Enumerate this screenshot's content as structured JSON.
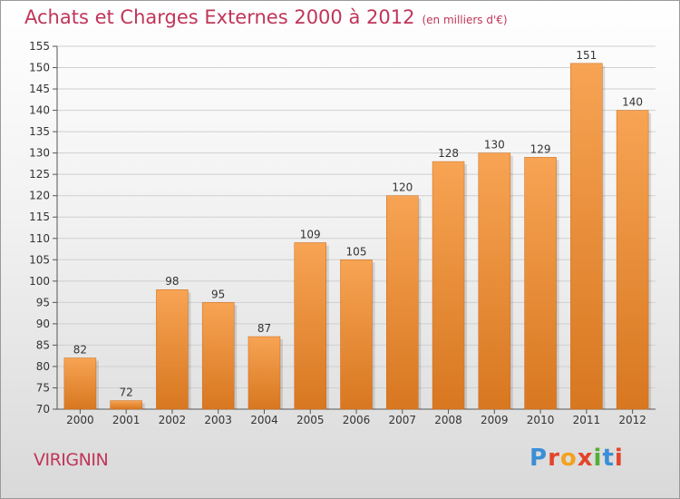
{
  "title": "Achats et Charges Externes 2000 à 2012",
  "unit": "(en milliers d'€)",
  "commune": "VIRIGNIN",
  "logo": "Proxiti",
  "colors": {
    "title": "#c0355a",
    "bar_top": "#f7a454",
    "bar_bottom": "#d87720"
  },
  "chart_data": {
    "type": "bar",
    "title": "Achats et Charges Externes 2000 à 2012",
    "subtitle": "(en milliers d'€)",
    "categories": [
      "2000",
      "2001",
      "2002",
      "2003",
      "2004",
      "2005",
      "2006",
      "2007",
      "2008",
      "2009",
      "2010",
      "2011",
      "2012"
    ],
    "values": [
      82,
      72,
      98,
      95,
      87,
      109,
      105,
      120,
      128,
      130,
      129,
      151,
      140
    ],
    "ylim": [
      70,
      155
    ],
    "yticks": [
      70,
      75,
      80,
      85,
      90,
      95,
      100,
      105,
      110,
      115,
      120,
      125,
      130,
      135,
      140,
      145,
      150,
      155
    ],
    "grid": true
  }
}
